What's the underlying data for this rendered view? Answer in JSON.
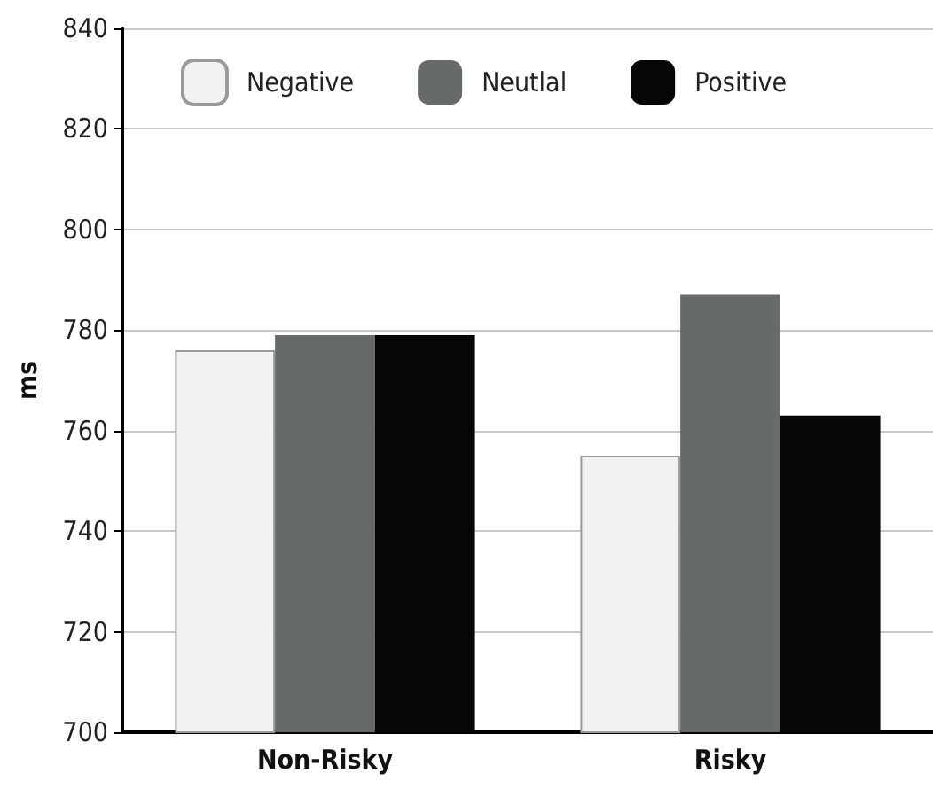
{
  "chart_data": {
    "type": "bar",
    "ylabel": "ms",
    "categories": [
      "Non-Risky",
      "Risky"
    ],
    "series": [
      {
        "name": "Negative",
        "color": "#f1f2f1",
        "values": [
          776,
          755
        ]
      },
      {
        "name": "Neutlal",
        "color": "#676a6a",
        "values": [
          779,
          787
        ]
      },
      {
        "name": "Positive",
        "color": "#050605",
        "values": [
          779,
          763
        ]
      }
    ],
    "ylim": [
      700,
      840
    ],
    "yticks": [
      700,
      720,
      740,
      760,
      780,
      800,
      820,
      840
    ],
    "grid": "y",
    "legend": "top left"
  }
}
